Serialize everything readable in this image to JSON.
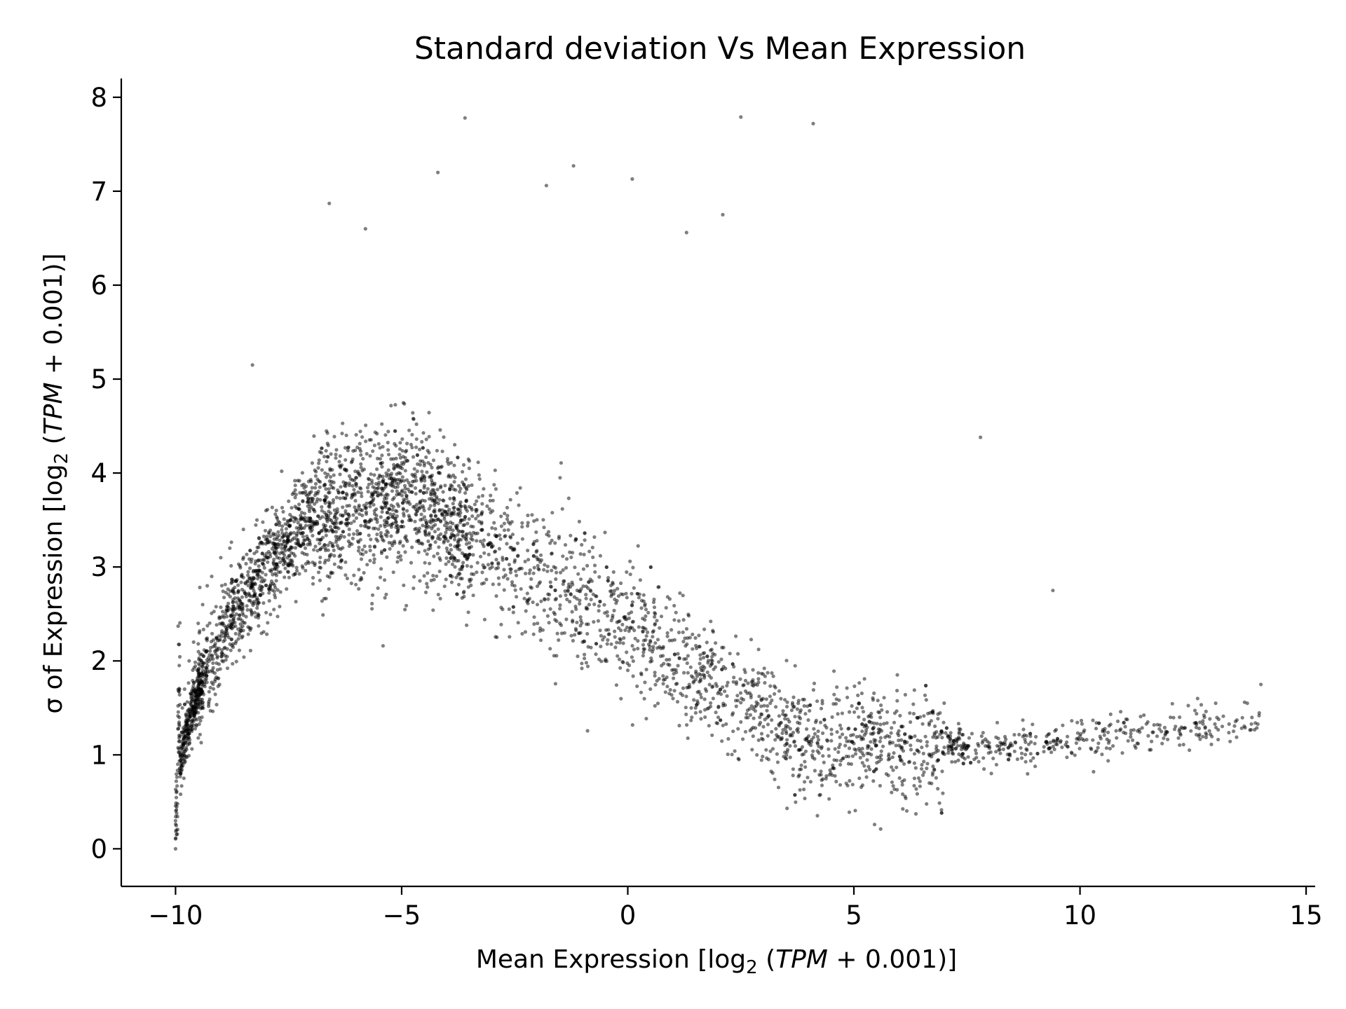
{
  "chart_data": {
    "type": "scatter",
    "title": "Standard deviation Vs Mean Expression",
    "xlabel": {
      "prefix": "Mean Expression [log",
      "sub": "2",
      "paren_open": " (",
      "italic": "TPM",
      "rest": " + 0.001)]"
    },
    "ylabel": {
      "prefix": "σ of Expression [log",
      "sub": "2",
      "paren_open": " (",
      "italic": "TPM",
      "rest": " + 0.001)]"
    },
    "xlim": [
      -11.2,
      15.2
    ],
    "ylim": [
      -0.4,
      8.2
    ],
    "xticks": [
      -10,
      -5,
      0,
      5,
      10,
      15
    ],
    "xtick_labels": [
      "−10",
      "−5",
      "0",
      "5",
      "10",
      "15"
    ],
    "yticks": [
      0,
      1,
      2,
      3,
      4,
      5,
      6,
      7,
      8
    ],
    "ytick_labels": [
      "0",
      "1",
      "2",
      "3",
      "4",
      "5",
      "6",
      "7",
      "8"
    ],
    "grid": false,
    "point_color": "#000000",
    "point_opacity": 0.5,
    "series": [
      {
        "x": [
          -10.0,
          -10.0,
          -9.98,
          -9.95,
          -9.9,
          -9.85,
          -9.8,
          -9.7,
          -9.6,
          -9.5,
          -9.4,
          -9.3,
          -9.2,
          -9.0,
          -8.8,
          -8.5,
          -8.2,
          -8.0,
          -7.5,
          -7.0,
          -6.5,
          -6.0,
          -5.5,
          -5.0,
          -4.5,
          -4.0,
          -3.5,
          -3.0,
          -2.5,
          -2.0,
          -1.5,
          -1.0,
          -0.5,
          0.0,
          0.5,
          1.0,
          1.5,
          2.0,
          2.5,
          3.0,
          3.5,
          4.0,
          4.5,
          5.0,
          5.5,
          6.0,
          6.5,
          7.0,
          7.5,
          8.0,
          8.5,
          9.0,
          9.5,
          10.0,
          10.5,
          11.0,
          11.5,
          12.0,
          12.6,
          13.0,
          13.7,
          14.0,
          -3.6,
          2.5,
          4.1,
          -4.2,
          -1.2,
          0.1,
          -6.6,
          -1.8,
          2.1,
          1.3,
          -5.8,
          -8.3,
          7.8,
          9.4,
          10.3,
          11.9
        ],
        "y": [
          0.0,
          0.3,
          0.6,
          0.9,
          1.2,
          1.5,
          1.7,
          2.0,
          2.2,
          2.4,
          2.6,
          2.8,
          2.9,
          3.1,
          3.2,
          3.4,
          3.5,
          3.6,
          3.7,
          3.8,
          3.9,
          3.95,
          3.9,
          3.8,
          3.6,
          3.4,
          3.2,
          3.0,
          2.8,
          2.6,
          2.4,
          2.2,
          2.0,
          1.9,
          1.7,
          1.6,
          1.5,
          1.4,
          1.35,
          1.3,
          1.25,
          1.2,
          1.15,
          1.12,
          1.1,
          1.1,
          1.08,
          1.08,
          1.07,
          1.07,
          1.1,
          1.12,
          1.15,
          1.2,
          1.25,
          1.3,
          1.35,
          1.4,
          1.6,
          1.55,
          1.55,
          1.75,
          7.78,
          7.79,
          7.72,
          7.2,
          7.27,
          7.13,
          6.87,
          7.06,
          6.75,
          6.56,
          6.6,
          5.15,
          4.38,
          2.75,
          0.82,
          1.25
        ],
        "density": "dense cloud of tens of thousands of points following a rising-then-falling band; exact per-point values not recoverable"
      }
    ]
  }
}
